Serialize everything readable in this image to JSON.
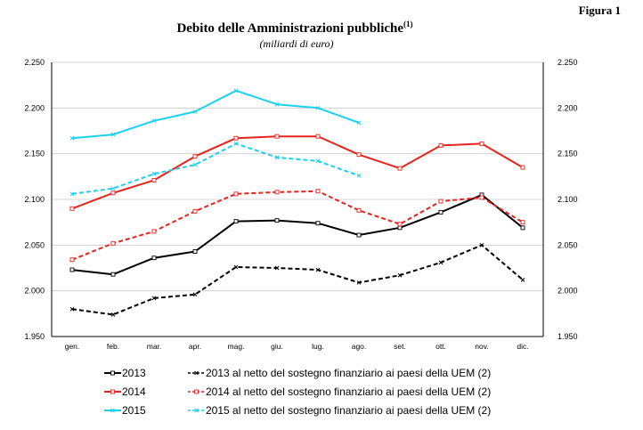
{
  "figure_label": "Figura 1",
  "title": "Debito delle Amministrazioni pubbliche",
  "title_note": "(1)",
  "subtitle": "(miliardi di euro)",
  "chart_data": {
    "type": "line",
    "categories": [
      "gen.",
      "feb.",
      "mar.",
      "apr.",
      "mag.",
      "giu.",
      "lug.",
      "ago.",
      "set.",
      "ott.",
      "nov.",
      "dic."
    ],
    "ylim": [
      1950,
      2250
    ],
    "yticks": [
      1950,
      2000,
      2050,
      2100,
      2150,
      2200,
      2250
    ],
    "ytick_labels": [
      "1.950",
      "2.000",
      "2.050",
      "2.100",
      "2.150",
      "2.200",
      "2.250"
    ],
    "grid": "horizontal",
    "axes": "left-and-right",
    "legend_position": "bottom",
    "series": [
      {
        "name": "2013",
        "color": "#000000",
        "dash": "solid",
        "marker": "square",
        "values": [
          2023,
          2018,
          2036,
          2043,
          2076,
          2077,
          2074,
          2061,
          2069,
          2086,
          2105,
          2069
        ]
      },
      {
        "name": "2013 al netto del sostegno finanziario ai paesi della UEM (2)",
        "color": "#000000",
        "dash": "dashed",
        "marker": "x",
        "values": [
          1980,
          1974,
          1992,
          1996,
          2026,
          2025,
          2023,
          2009,
          2017,
          2031,
          2050,
          2012
        ]
      },
      {
        "name": "2014",
        "color": "#e8231e",
        "dash": "solid",
        "marker": "square",
        "values": [
          2090,
          2107,
          2121,
          2147,
          2167,
          2169,
          2169,
          2149,
          2134,
          2159,
          2161,
          2135
        ]
      },
      {
        "name": "2014 al netto del sostegno finanziario ai paesi della UEM (2)",
        "color": "#e8231e",
        "dash": "dashed",
        "marker": "square",
        "values": [
          2034,
          2052,
          2065,
          2087,
          2106,
          2108,
          2109,
          2088,
          2073,
          2098,
          2102,
          2075
        ]
      },
      {
        "name": "2015",
        "color": "#19d2f0",
        "dash": "solid",
        "marker": "x",
        "values": [
          2167,
          2171,
          2186,
          2196,
          2219,
          2204,
          2200,
          2184,
          null,
          null,
          null,
          null
        ]
      },
      {
        "name": "2015 al netto del sostegno finanziario ai paesi della UEM (2)",
        "color": "#19d2f0",
        "dash": "dashed",
        "marker": "x",
        "values": [
          2106,
          2112,
          2128,
          2138,
          2161,
          2146,
          2142,
          2126,
          null,
          null,
          null,
          null
        ]
      }
    ]
  }
}
